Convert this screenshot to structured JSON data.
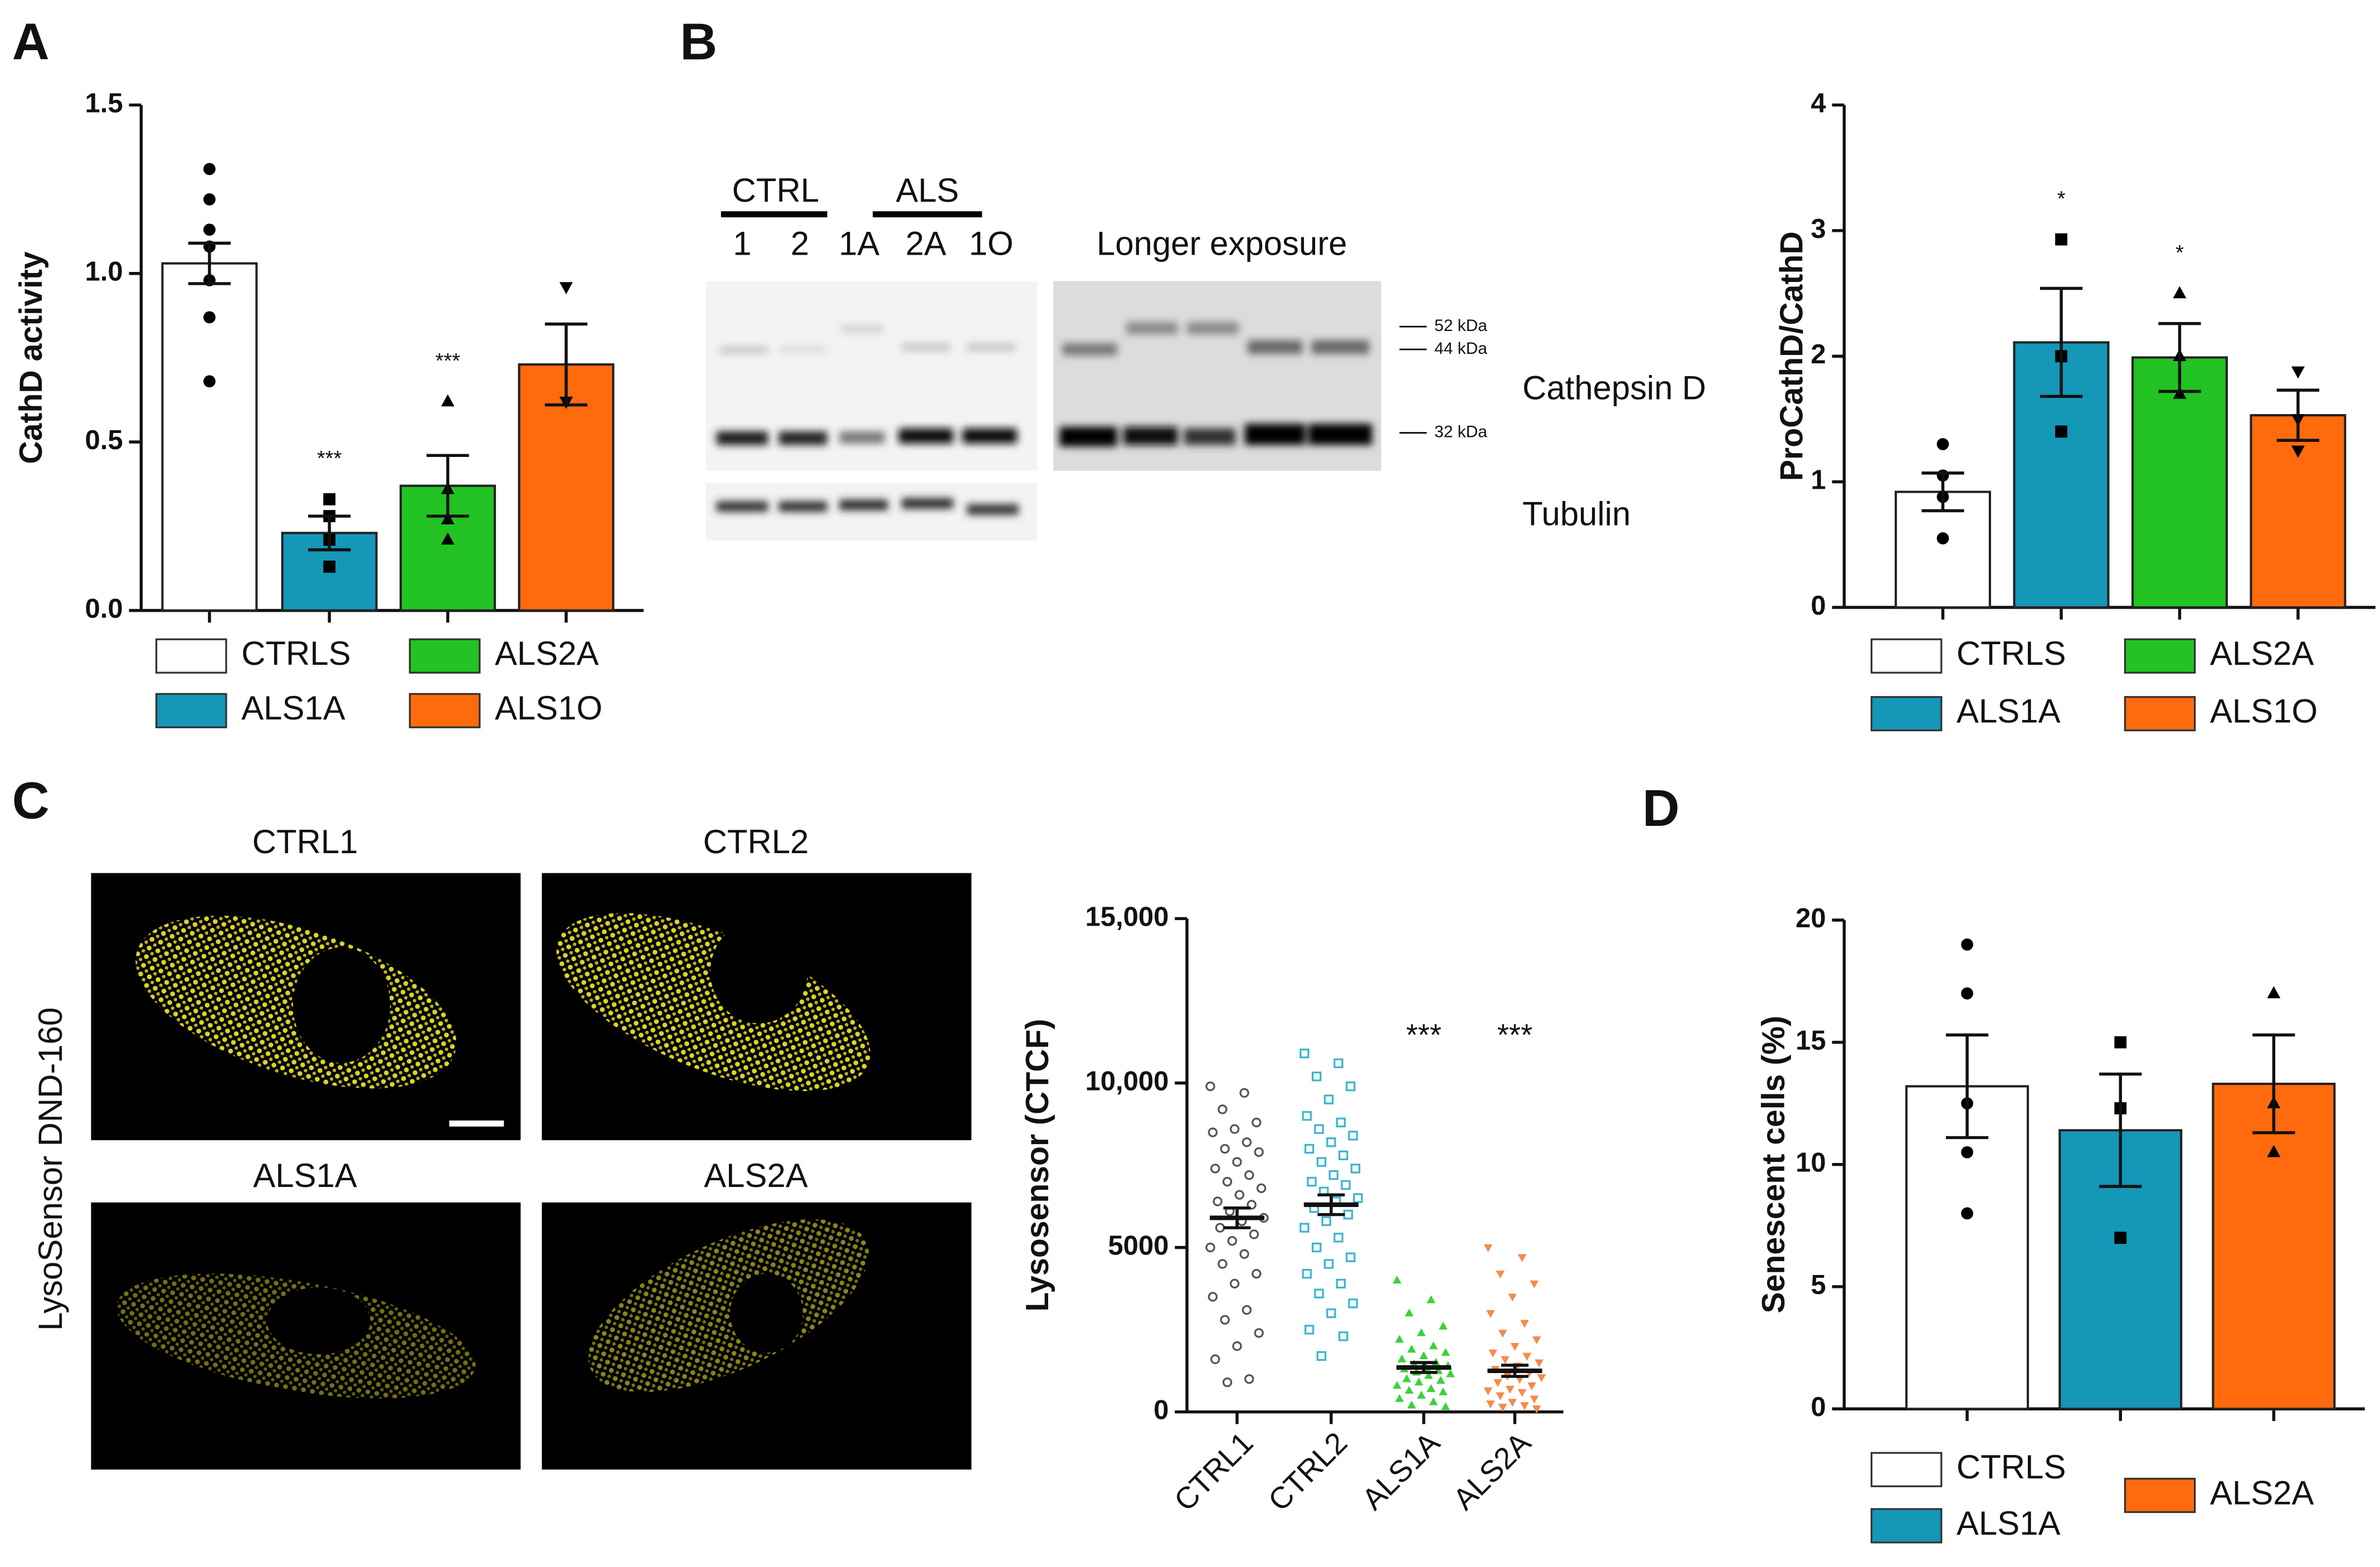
{
  "panel_labels": [
    "A",
    "B",
    "C",
    "D"
  ],
  "blot": {
    "groups": [
      "CTRL",
      "ALS"
    ],
    "lanes": [
      "1",
      "2",
      "1A",
      "2A",
      "1O"
    ],
    "exposure_label": "Longer exposure",
    "markers": [
      "52 kDa",
      "44 kDa",
      "32 kDa"
    ],
    "proteins": [
      "Cathepsin D",
      "Tubulin"
    ]
  },
  "micrographs": {
    "titles": [
      "CTRL1",
      "CTRL2",
      "ALS1A",
      "ALS2A"
    ],
    "stain": "LysoSensor DND-160"
  },
  "chart_data": [
    {
      "type": "bar",
      "ylabel": "CathD activity",
      "ylim": [
        0,
        1.5
      ],
      "yticks": [
        {
          "value": 0,
          "label": "0.0"
        },
        0.5,
        {
          "value": 1,
          "label": "1.0"
        },
        1.5
      ],
      "series": [
        {
          "name": "CTRLS",
          "color": "#ffffff",
          "marker": "circle",
          "values": [
            1.03
          ],
          "sem": [
            0.06
          ],
          "points": [
            1.31,
            1.22,
            1.13,
            1.08,
            0.98,
            0.87,
            0.68
          ]
        },
        {
          "name": "ALS1A",
          "color": "#1597b8",
          "marker": "square",
          "values": [
            0.23
          ],
          "sem": [
            0.05
          ],
          "points": [
            0.33,
            0.28,
            0.21,
            0.13
          ],
          "significance": "***"
        },
        {
          "name": "ALS2A",
          "color": "#22c322",
          "marker": "triangle",
          "values": [
            0.37
          ],
          "sem": [
            0.09
          ],
          "points": [
            0.62,
            0.36,
            0.27,
            0.21
          ],
          "significance": "***"
        },
        {
          "name": "ALS1O",
          "color": "#ff6a0d",
          "marker": "triangle-down",
          "values": [
            0.73
          ],
          "sem": [
            0.12
          ],
          "points": [
            0.96,
            0.62,
            0.62
          ]
        }
      ]
    },
    {
      "type": "bar",
      "ylabel": "ProCathD/CathD",
      "ylim": [
        0,
        4
      ],
      "yticks": [
        0,
        1,
        2,
        3,
        4
      ],
      "series": [
        {
          "name": "CTRLS",
          "color": "#ffffff",
          "marker": "circle",
          "values": [
            0.92
          ],
          "sem": [
            0.15
          ],
          "points": [
            1.3,
            1.05,
            0.88,
            0.55
          ]
        },
        {
          "name": "ALS1A",
          "color": "#1597b8",
          "marker": "square",
          "values": [
            2.11
          ],
          "sem": [
            0.43
          ],
          "points": [
            2.93,
            2.0,
            1.4
          ],
          "significance": "*"
        },
        {
          "name": "ALS2A",
          "color": "#22c322",
          "marker": "triangle",
          "values": [
            1.99
          ],
          "sem": [
            0.27
          ],
          "points": [
            2.5,
            2.0,
            1.7
          ],
          "significance": "*"
        },
        {
          "name": "ALS1O",
          "color": "#ff6a0d",
          "marker": "triangle-down",
          "values": [
            1.53
          ],
          "sem": [
            0.2
          ],
          "points": [
            1.88,
            1.5,
            1.25
          ]
        }
      ]
    },
    {
      "type": "scatter",
      "ylabel": "Lysosensor (CTCF)",
      "ylim": [
        0,
        15000
      ],
      "yticks": [
        0,
        5000,
        {
          "value": 10000,
          "label": "10,000"
        },
        {
          "value": 15000,
          "label": "15,000"
        }
      ],
      "categories": [
        "CTRL1",
        "CTRL2",
        "ALS1A",
        "ALS2A"
      ],
      "series": [
        {
          "name": "CTRL1",
          "color": "#555555",
          "marker": "circle",
          "values": [
            5900
          ],
          "sem": [
            300
          ],
          "points": [
            9900,
            9700,
            9200,
            8800,
            8600,
            8500,
            8200,
            8000,
            7900,
            7600,
            7400,
            7200,
            7000,
            6800,
            6600,
            6400,
            6300,
            6100,
            5900,
            5800,
            5600,
            5400,
            5200,
            5000,
            4800,
            4500,
            4200,
            3900,
            3500,
            3100,
            2800,
            2400,
            2000,
            1600,
            1000,
            900
          ]
        },
        {
          "name": "CTRL2",
          "color": "#3bb6cf",
          "marker": "square",
          "values": [
            6300
          ],
          "sem": [
            300
          ],
          "points": [
            10900,
            10600,
            10200,
            9900,
            9500,
            9000,
            8800,
            8600,
            8400,
            8200,
            8000,
            7800,
            7600,
            7400,
            7200,
            7000,
            6900,
            6700,
            6500,
            6400,
            6200,
            6000,
            5800,
            5600,
            5300,
            5000,
            4700,
            4500,
            4200,
            3900,
            3600,
            3300,
            3000,
            2500,
            2300,
            1700
          ]
        },
        {
          "name": "ALS1A",
          "color": "#3bd13b",
          "marker": "triangle",
          "values": [
            1350
          ],
          "sem": [
            150
          ],
          "significance": "***",
          "points": [
            4000,
            3400,
            3000,
            2600,
            2400,
            2200,
            2000,
            1900,
            1800,
            1700,
            1600,
            1500,
            1450,
            1400,
            1350,
            1300,
            1250,
            1200,
            1150,
            1100,
            1000,
            950,
            900,
            800,
            700,
            650,
            600,
            500,
            400,
            300,
            200,
            150
          ]
        },
        {
          "name": "ALS2A",
          "color": "#f58a4a",
          "marker": "triangle-down",
          "values": [
            1250
          ],
          "sem": [
            170
          ],
          "significance": "***",
          "points": [
            5000,
            4700,
            4200,
            3900,
            3500,
            3000,
            2700,
            2400,
            2200,
            2000,
            1800,
            1700,
            1600,
            1500,
            1400,
            1300,
            1200,
            1100,
            1050,
            1000,
            900,
            800,
            700,
            650,
            600,
            500,
            400,
            300,
            250,
            200,
            150,
            100
          ]
        }
      ]
    },
    {
      "type": "bar",
      "ylabel": "Senescent cells (%)",
      "ylim": [
        0,
        20
      ],
      "yticks": [
        0,
        5,
        10,
        15,
        20
      ],
      "series": [
        {
          "name": "CTRLS",
          "color": "#ffffff",
          "marker": "circle",
          "values": [
            13.2
          ],
          "sem": [
            2.1
          ],
          "points": [
            19,
            17,
            12.5,
            10.5,
            8
          ]
        },
        {
          "name": "ALS1A",
          "color": "#1597b8",
          "marker": "square",
          "values": [
            11.4
          ],
          "sem": [
            2.3
          ],
          "points": [
            15,
            12.3,
            7
          ]
        },
        {
          "name": "ALS2A",
          "color": "#ff6a0d",
          "marker": "triangle",
          "values": [
            13.3
          ],
          "sem": [
            2.0
          ],
          "points": [
            17,
            12.5,
            10.5
          ]
        }
      ]
    }
  ]
}
